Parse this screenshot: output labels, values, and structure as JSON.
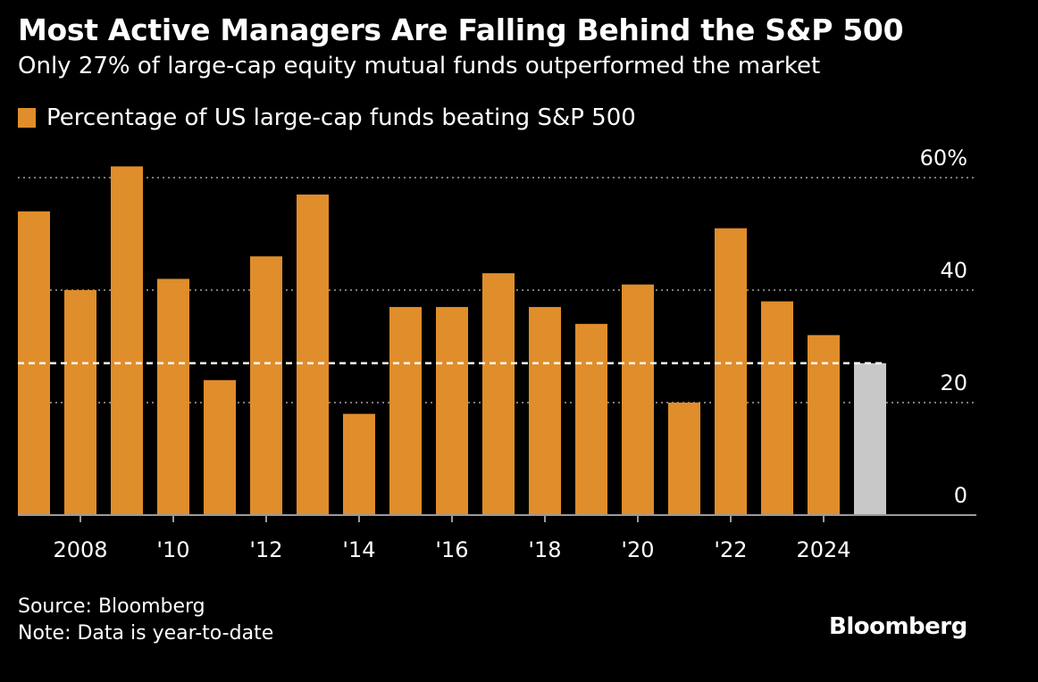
{
  "title": "Most Active Managers Are Falling Behind the S&P 500",
  "subtitle": "Only 27% of large-cap equity mutual funds outperformed the market",
  "legend": {
    "label": "Percentage of US large-cap funds beating S&P 500",
    "color": "#e08d2b"
  },
  "footer": {
    "source": "Source: Bloomberg",
    "note": "Note: Data is year-to-date",
    "brand": "Bloomberg"
  },
  "colors": {
    "background": "#000000",
    "bar": "#e08d2b",
    "bar_ytd": "#c8c8c8",
    "grid": "#7a7a7a",
    "reference_line": "#ffffff"
  },
  "chart_data": {
    "type": "bar",
    "categories": [
      "2007",
      "2008",
      "2009",
      "2010",
      "2011",
      "2012",
      "2013",
      "2014",
      "2015",
      "2016",
      "2017",
      "2018",
      "2019",
      "2020",
      "2021",
      "2022",
      "2023",
      "2024",
      "2025"
    ],
    "values": [
      54,
      40,
      62,
      42,
      24,
      46,
      57,
      18,
      37,
      37,
      43,
      37,
      34,
      41,
      20,
      51,
      38,
      32,
      27
    ],
    "highlight_last_as_ytd": true,
    "reference_line": 27,
    "reference_line_style": "dashed",
    "x_tick_labels": [
      {
        "category": "2008",
        "label": "2008"
      },
      {
        "category": "2010",
        "label": "'10"
      },
      {
        "category": "2012",
        "label": "'12"
      },
      {
        "category": "2014",
        "label": "'14"
      },
      {
        "category": "2016",
        "label": "'16"
      },
      {
        "category": "2018",
        "label": "'18"
      },
      {
        "category": "2020",
        "label": "'20"
      },
      {
        "category": "2022",
        "label": "'22"
      },
      {
        "category": "2024",
        "label": "2024"
      }
    ],
    "y_ticks": [
      {
        "value": 0,
        "label": "0"
      },
      {
        "value": 20,
        "label": "20"
      },
      {
        "value": 40,
        "label": "40"
      },
      {
        "value": 60,
        "label": "60%"
      }
    ],
    "ylim": [
      0,
      60
    ],
    "y_axis_side": "right",
    "grid": true
  }
}
